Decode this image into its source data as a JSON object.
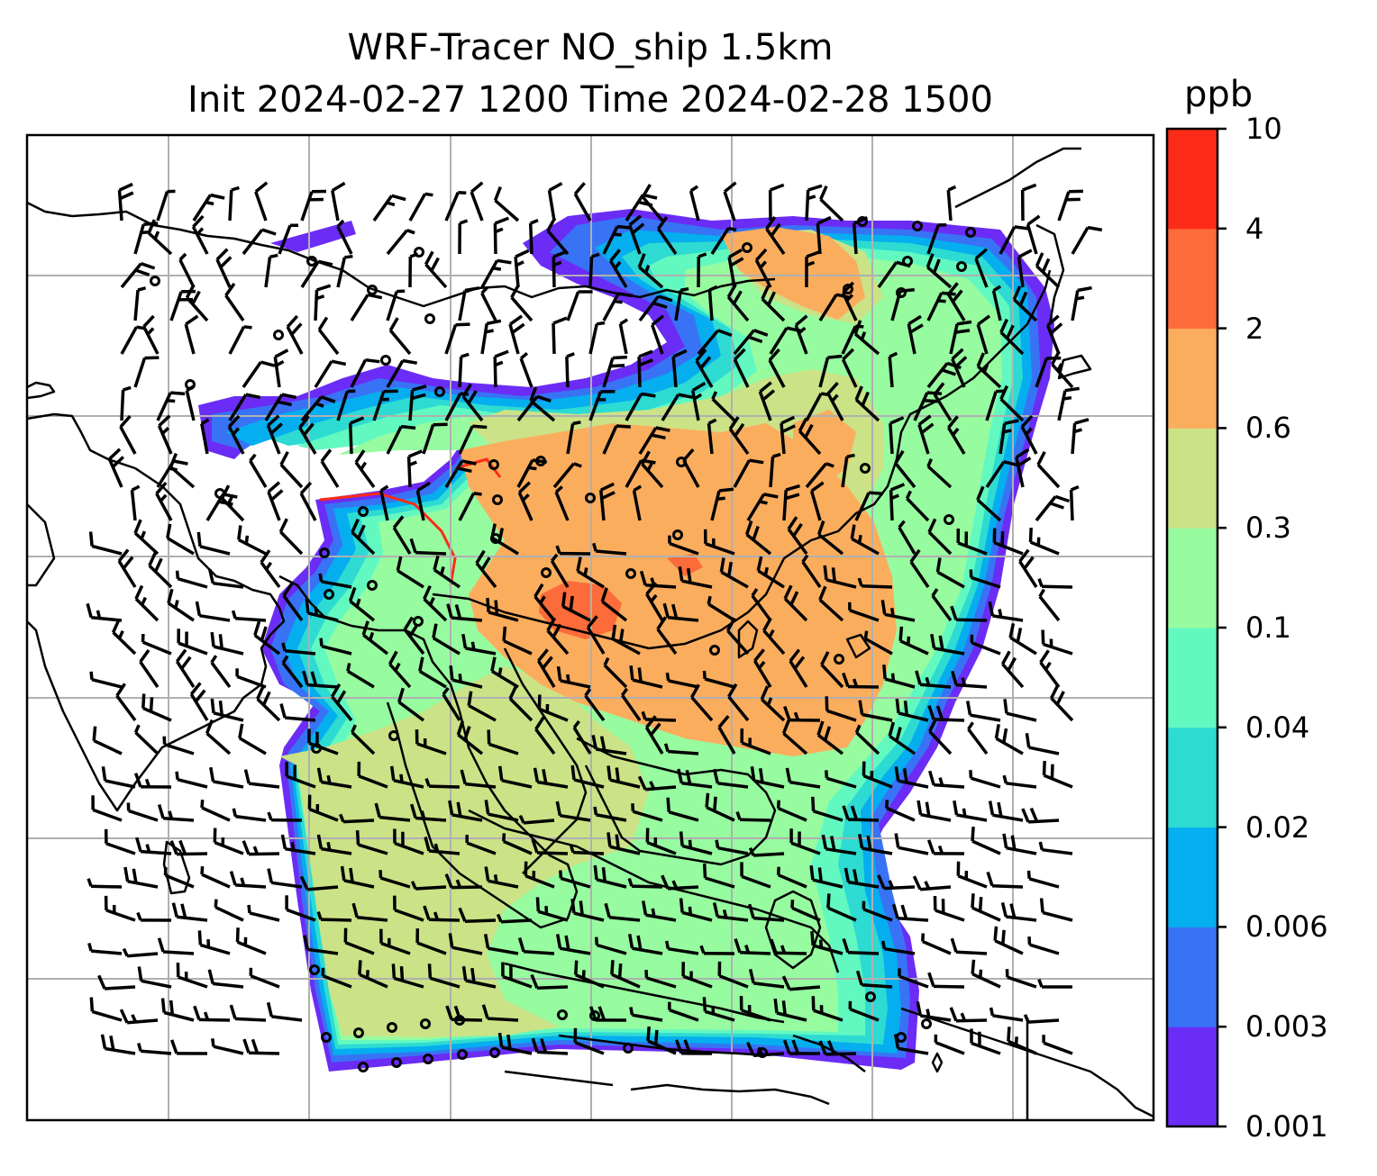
{
  "title": {
    "line1": "WRF-Tracer NO_ship 1.5km",
    "line2": "Init 2024-02-27 1200 Time 2024-02-28 1500"
  },
  "colorbar": {
    "unit": "ppb",
    "ticks": [
      "0.001",
      "0.003",
      "0.006",
      "0.02",
      "0.04",
      "0.1",
      "0.3",
      "0.6",
      "2",
      "4",
      "10"
    ],
    "colors": [
      "#6b2cf5",
      "#3873f5",
      "#05aeee",
      "#2ddbd2",
      "#62f9c1",
      "#97fba0",
      "#cbe286",
      "#fbad5e",
      "#fc6b3a",
      "#fc2b18"
    ]
  },
  "map": {
    "gridlines": "on",
    "grid_color": "#b0b0b0",
    "coastline_color": "#000000",
    "wind_barb_color": "#000000",
    "field": "NO_ship tracer concentration"
  }
}
